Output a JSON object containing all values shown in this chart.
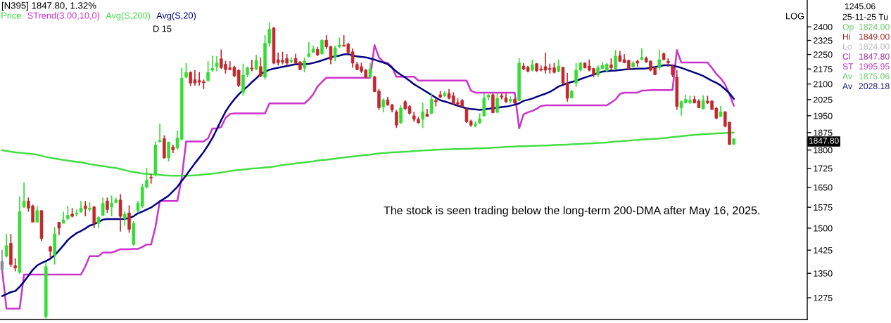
{
  "chart_data": [
    {
      "type": "candlestick",
      "title": "[N395] 1847.80, 1.32%",
      "categories": [
        null,
        null,
        null,
        null,
        null,
        null,
        null,
        null,
        null,
        null,
        null,
        null,
        null,
        null,
        null,
        null,
        null,
        null,
        null,
        null,
        null,
        null,
        null,
        null,
        null,
        null,
        null,
        null,
        null,
        null,
        null,
        null,
        null,
        null,
        null,
        null,
        null,
        null,
        null,
        null,
        null,
        null,
        null,
        null,
        null,
        null,
        null,
        null,
        null,
        null,
        null,
        null,
        null,
        null,
        null,
        null,
        null,
        null,
        null,
        null,
        null,
        null,
        null,
        null,
        null,
        null,
        null,
        null,
        null,
        null,
        null,
        null,
        null,
        null,
        null,
        null,
        null,
        null,
        null,
        null,
        null,
        null,
        null,
        null,
        null,
        null,
        null,
        null,
        null,
        null,
        null,
        null,
        null,
        null,
        null,
        null,
        null,
        null,
        null,
        null,
        null,
        null,
        null,
        null,
        null,
        null,
        null,
        null,
        null,
        null,
        null,
        null,
        null,
        null,
        null,
        null,
        null,
        null,
        null,
        null,
        null,
        null,
        null,
        null,
        null,
        null,
        null,
        null,
        null,
        null,
        null,
        null,
        null,
        null,
        null,
        null,
        null,
        null,
        null,
        null,
        null,
        null,
        null,
        null,
        null,
        null,
        null,
        null,
        null,
        null,
        null,
        null,
        null,
        null,
        null,
        null,
        null,
        null,
        null,
        null,
        null,
        null,
        null,
        null,
        null,
        null,
        null,
        null
      ],
      "series": [
        {
          "name": "Price",
          "color": "#33dd33",
          "ohlc": [
            [
              1388,
              1426,
              1356,
              1360
            ],
            [
              1405,
              1480,
              1401,
              1440
            ],
            [
              1448,
              1480,
              1371,
              1378
            ],
            [
              1374,
              1398,
              1356,
              1367
            ],
            [
              1353,
              1615,
              1349,
              1559
            ],
            [
              1576,
              1669,
              1572,
              1598
            ],
            [
              1598,
              1611,
              1559,
              1572
            ],
            [
              1580,
              1585,
              1521,
              1521
            ],
            [
              1521,
              1580,
              1521,
              1563
            ],
            [
              1563,
              1563,
              1456,
              1464
            ],
            [
              1220,
              1386,
              1215,
              1371
            ],
            [
              1436,
              1440,
              1401,
              1421
            ],
            [
              1409,
              1504,
              1378,
              1480
            ],
            [
              1521,
              1521,
              1476,
              1500
            ],
            [
              1517,
              1559,
              1517,
              1529
            ],
            [
              1534,
              1580,
              1529,
              1546
            ],
            [
              1550,
              1572,
              1538,
              1542
            ],
            [
              1550,
              1567,
              1542,
              1554
            ],
            [
              1559,
              1598,
              1554,
              1572
            ],
            [
              1580,
              1598,
              1542,
              1570
            ],
            [
              1567,
              1593,
              1559,
              1572
            ],
            [
              1576,
              1580,
              1500,
              1517
            ],
            [
              1517,
              1542,
              1500,
              1538
            ],
            [
              1546,
              1611,
              1542,
              1589
            ],
            [
              1598,
              1611,
              1554,
              1567
            ],
            [
              1576,
              1619,
              1542,
              1589
            ],
            [
              1593,
              1611,
              1589,
              1602
            ],
            [
              1602,
              1624,
              1488,
              1542
            ],
            [
              1534,
              1559,
              1508,
              1550
            ],
            [
              1554,
              1582,
              1484,
              1496
            ],
            [
              1444,
              1525,
              1440,
              1517
            ],
            [
              1563,
              1598,
              1554,
              1589
            ],
            [
              1580,
              1664,
              1572,
              1651
            ],
            [
              1651,
              1727,
              1646,
              1678
            ],
            [
              1690,
              1702,
              1664,
              1686
            ],
            [
              1702,
              1836,
              1692,
              1821
            ],
            [
              1836,
              1915,
              1831,
              1841
            ],
            [
              1849,
              1863,
              1764,
              1767
            ],
            [
              1767,
              1836,
              1753,
              1833
            ],
            [
              1813,
              1823,
              1787,
              1801
            ],
            [
              1809,
              1884,
              1801,
              1851
            ],
            [
              1846,
              2181,
              1841,
              2128
            ],
            [
              2134,
              2205,
              2128,
              2158
            ],
            [
              2158,
              2163,
              2090,
              2105
            ],
            [
              2122,
              2169,
              2093,
              2105
            ],
            [
              2117,
              2160,
              2093,
              2109
            ],
            [
              2112,
              2122,
              2075,
              2106
            ],
            [
              2117,
              2215,
              2111,
              2158
            ],
            [
              2169,
              2244,
              2160,
              2178
            ],
            [
              2187,
              2241,
              2163,
              2205
            ],
            [
              2227,
              2276,
              2175,
              2181
            ],
            [
              2199,
              2217,
              2152,
              2172
            ],
            [
              2181,
              2215,
              2169,
              2172
            ],
            [
              2184,
              2191,
              2134,
              2140
            ],
            [
              2169,
              2172,
              2085,
              2093
            ],
            [
              2060,
              2202,
              2043,
              2144
            ],
            [
              2146,
              2187,
              2134,
              2181
            ],
            [
              2180,
              2223,
              2163,
              2174
            ],
            [
              2174,
              2248,
              2169,
              2219
            ],
            [
              2187,
              2235,
              2134,
              2140
            ],
            [
              2134,
              2354,
              2122,
              2310
            ],
            [
              2310,
              2426,
              2291,
              2387
            ],
            [
              2393,
              2400,
              2199,
              2205
            ],
            [
              2223,
              2260,
              2193,
              2207
            ],
            [
              2219,
              2264,
              2199,
              2211
            ],
            [
              2229,
              2252,
              2193,
              2205
            ],
            [
              2214,
              2235,
              2205,
              2220
            ],
            [
              2229,
              2254,
              2199,
              2205
            ],
            [
              2211,
              2216,
              2169,
              2172
            ],
            [
              2181,
              2235,
              2158,
              2215
            ],
            [
              2239,
              2316,
              2235,
              2254
            ],
            [
              2260,
              2297,
              2260,
              2279
            ],
            [
              2276,
              2291,
              2241,
              2248
            ],
            [
              2254,
              2331,
              2248,
              2326
            ],
            [
              2326,
              2354,
              2279,
              2291
            ],
            [
              2291,
              2297,
              2199,
              2223
            ],
            [
              2235,
              2297,
              2215,
              2285
            ],
            [
              2291,
              2341,
              2285,
              2300
            ],
            [
              2299,
              2354,
              2291,
              2294
            ],
            [
              2305,
              2313,
              2252,
              2260
            ],
            [
              2264,
              2282,
              2181,
              2205
            ],
            [
              2198,
              2211,
              2169,
              2172
            ],
            [
              2187,
              2207,
              2155,
              2163
            ],
            [
              2169,
              2175,
              2128,
              2134
            ],
            [
              2134,
              2205,
              2131,
              2175
            ],
            [
              2136,
              2140,
              2060,
              2063
            ],
            [
              2065,
              2076,
              1977,
              1987
            ],
            [
              1990,
              2031,
              1966,
              2023
            ],
            [
              2023,
              2037,
              1996,
              2001
            ],
            [
              2001,
              2004,
              1966,
              1977
            ],
            [
              1968,
              1977,
              1895,
              1908
            ],
            [
              1918,
              1998,
              1913,
              1985
            ],
            [
              2015,
              2023,
              1977,
              1982
            ],
            [
              1993,
              1998,
              1956,
              1961
            ],
            [
              1950,
              1968,
              1923,
              1934
            ],
            [
              1934,
              1945,
              1915,
              1918
            ],
            [
              1934,
              2011,
              1895,
              1968
            ],
            [
              1958,
              1982,
              1945,
              1947
            ],
            [
              1961,
              2056,
              1956,
              2026
            ],
            [
              2021,
              2031,
              1993,
              2015
            ],
            [
              2048,
              2067,
              2031,
              2037
            ],
            [
              2043,
              2065,
              2037,
              2054
            ],
            [
              2054,
              2075,
              2026,
              2031
            ],
            [
              2043,
              2060,
              1998,
              2004
            ],
            [
              2011,
              2031,
              1996,
              2004
            ],
            [
              2021,
              2028,
              1987,
              1993
            ],
            [
              1982,
              1987,
              1918,
              1923
            ],
            [
              1925,
              1932,
              1901,
              1908
            ],
            [
              1905,
              1925,
              1898,
              1913
            ],
            [
              1918,
              1961,
              1913,
              1936
            ],
            [
              1950,
              2054,
              1945,
              2031
            ],
            [
              2037,
              2051,
              2021,
              2045
            ],
            [
              2048,
              2054,
              1961,
              1964
            ],
            [
              1966,
              2054,
              1961,
              2031
            ],
            [
              2043,
              2054,
              2026,
              2037
            ],
            [
              2033,
              2054,
              2009,
              2015
            ],
            [
              2018,
              2040,
              2009,
              2026
            ],
            [
              2026,
              2031,
              2004,
              2009
            ],
            [
              2021,
              2230,
              2018,
              2205
            ],
            [
              2190,
              2205,
              2169,
              2175
            ],
            [
              2184,
              2191,
              2158,
              2163
            ],
            [
              2169,
              2223,
              2163,
              2196
            ],
            [
              2202,
              2205,
              2160,
              2166
            ],
            [
              2175,
              2193,
              2163,
              2169
            ],
            [
              2187,
              2260,
              2152,
              2169
            ],
            [
              2178,
              2202,
              2152,
              2172
            ],
            [
              2181,
              2205,
              2152,
              2158
            ],
            [
              2163,
              2223,
              2158,
              2190
            ],
            [
              2184,
              2184,
              2099,
              2105
            ],
            [
              2105,
              2155,
              2015,
              2031
            ],
            [
              2033,
              2071,
              2031,
              2065
            ],
            [
              2105,
              2205,
              2085,
              2169
            ],
            [
              2169,
              2211,
              2163,
              2205
            ],
            [
              2205,
              2209,
              2178,
              2181
            ],
            [
              2190,
              2223,
              2163,
              2169
            ],
            [
              2177,
              2181,
              2134,
              2146
            ],
            [
              2146,
              2193,
              2134,
              2181
            ],
            [
              2178,
              2211,
              2175,
              2193
            ],
            [
              2166,
              2205,
              2160,
              2199
            ],
            [
              2196,
              2230,
              2169,
              2181
            ],
            [
              2175,
              2273,
              2173,
              2241
            ],
            [
              2244,
              2269,
              2211,
              2215
            ],
            [
              2223,
              2252,
              2205,
              2207
            ],
            [
              2219,
              2223,
              2169,
              2175
            ],
            [
              2187,
              2215,
              2181,
              2205
            ],
            [
              2215,
              2223,
              2187,
              2205
            ],
            [
              2223,
              2282,
              2219,
              2235
            ],
            [
              2230,
              2239,
              2207,
              2211
            ],
            [
              2215,
              2219,
              2163,
              2169
            ],
            [
              2181,
              2187,
              2144,
              2146
            ],
            [
              2181,
              2276,
              2169,
              2223
            ],
            [
              2254,
              2260,
              2219,
              2223
            ],
            [
              2215,
              2230,
              2187,
              2207
            ],
            [
              2187,
              2199,
              2134,
              2146
            ],
            [
              2134,
              2169,
              1977,
              1993
            ],
            [
              1987,
              2021,
              1950,
              2015
            ],
            [
              2009,
              2048,
              2008,
              2026
            ],
            [
              2011,
              2043,
              2004,
              2021
            ],
            [
              2026,
              2043,
              2008,
              2009
            ],
            [
              2018,
              2026,
              1985,
              1987
            ],
            [
              1982,
              2045,
              1979,
              2021
            ],
            [
              2018,
              2043,
              2004,
              2009
            ],
            [
              2018,
              2023,
              1977,
              1979
            ],
            [
              1985,
              1990,
              1934,
              1939
            ],
            [
              1947,
              1996,
              1945,
              1968
            ],
            [
              1968,
              1971,
              1898,
              1903
            ],
            [
              1921,
              1923,
              1821,
              1824
            ],
            [
              1824,
              1849,
              1824,
              1847.8
            ]
          ],
          "colors": [
            "#8e8a9e",
            "#33dd33",
            "#c1272d",
            "#c1272d",
            "#33dd33",
            "#33dd33",
            "#c1272d",
            "#c1272d",
            "#33dd33",
            "#c1272d",
            "#33dd33",
            "#c1272d",
            "#33dd33",
            "#c1272d",
            "#33dd33",
            "#33dd33",
            "#c1272d",
            "#33dd33",
            "#33dd33",
            "#c1272d",
            "#33dd33",
            "#c1272d",
            "#33dd33",
            "#33dd33",
            "#c1272d",
            "#33dd33",
            "#33dd33",
            "#c1272d",
            "#33dd33",
            "#c1272d",
            "#33dd33",
            "#33dd33",
            "#33dd33",
            "#33dd33",
            "#c1272d",
            "#33dd33",
            "#33dd33",
            "#c1272d",
            "#33dd33",
            "#c1272d",
            "#33dd33",
            "#33dd33",
            "#33dd33",
            "#c1272d",
            "#c1272d",
            "#c1272d",
            "#c1272d",
            "#33dd33",
            "#33dd33",
            "#33dd33",
            "#c1272d",
            "#c1272d",
            "#c1272d",
            "#c1272d",
            "#c1272d",
            "#33dd33",
            "#33dd33",
            "#c1272d",
            "#33dd33",
            "#c1272d",
            "#33dd33",
            "#33dd33",
            "#c1272d",
            "#c1272d",
            "#c1272d",
            "#c1272d",
            "#33dd33",
            "#c1272d",
            "#c1272d",
            "#33dd33",
            "#33dd33",
            "#33dd33",
            "#c1272d",
            "#33dd33",
            "#c1272d",
            "#c1272d",
            "#33dd33",
            "#33dd33",
            "#c1272d",
            "#c1272d",
            "#c1272d",
            "#c1272d",
            "#c1272d",
            "#c1272d",
            "#33dd33",
            "#c1272d",
            "#c1272d",
            "#33dd33",
            "#c1272d",
            "#c1272d",
            "#c1272d",
            "#33dd33",
            "#c1272d",
            "#c1272d",
            "#c1272d",
            "#c1272d",
            "#33dd33",
            "#c1272d",
            "#33dd33",
            "#c1272d",
            "#c1272d",
            "#33dd33",
            "#c1272d",
            "#c1272d",
            "#c1272d",
            "#c1272d",
            "#c1272d",
            "#c1272d",
            "#33dd33",
            "#33dd33",
            "#33dd33",
            "#33dd33",
            "#c1272d",
            "#33dd33",
            "#c1272d",
            "#c1272d",
            "#33dd33",
            "#c1272d",
            "#33dd33",
            "#c1272d",
            "#c1272d",
            "#33dd33",
            "#c1272d",
            "#c1272d",
            "#c1272d",
            "#c1272d",
            "#c1272d",
            "#33dd33",
            "#c1272d",
            "#c1272d",
            "#33dd33",
            "#33dd33",
            "#33dd33",
            "#c1272d",
            "#c1272d",
            "#c1272d",
            "#33dd33",
            "#33dd33",
            "#33dd33",
            "#c1272d",
            "#33dd33",
            "#c1272d",
            "#c1272d",
            "#c1272d",
            "#33dd33",
            "#c1272d",
            "#33dd33",
            "#c1272d",
            "#c1272d",
            "#c1272d",
            "#33dd33",
            "#c1272d",
            "#c1272d",
            "#c1272d",
            "#c1272d",
            "#33dd33",
            "#33dd33",
            "#33dd33",
            "#c1272d",
            "#c1272d",
            "#33dd33",
            "#c1272d",
            "#c1272d",
            "#c1272d",
            "#33dd33",
            "#c1272d",
            "#c1272d",
            "#33dd33"
          ]
        },
        {
          "name": "STrend(3.00,10,0)",
          "type": "line",
          "color": "#cc33cc",
          "values": [
            1362,
            1243,
            1243,
            1243,
            1243,
            1346,
            1346,
            1346,
            1346,
            1346,
            1346,
            1346,
            1346,
            1346,
            1346,
            1346,
            1346,
            1346,
            1346,
            1372,
            1405,
            1405,
            1405,
            1417,
            1417,
            1417,
            1422,
            1428,
            1428,
            1428,
            1429,
            1429,
            1436,
            1444,
            1444,
            1504,
            1598,
            1598,
            1598,
            1598,
            1598,
            1687,
            1836,
            1836,
            1836,
            1836,
            1836,
            1850,
            1893,
            1893,
            1900,
            1940,
            1958,
            1961,
            1961,
            1961,
            1961,
            1961,
            1961,
            1961,
            1961,
            2007,
            2007,
            2007,
            2007,
            2007,
            2007,
            2007,
            2007,
            2007,
            2025,
            2050,
            2088,
            2110,
            2131,
            2131,
            2131,
            2131,
            2131,
            2131,
            2131,
            2131,
            2131,
            2131,
            2131,
            2300,
            2235,
            2211,
            2205,
            2185,
            2136,
            2136,
            2136,
            2136,
            2136,
            2117,
            2117,
            2117,
            2117,
            2117,
            2117,
            2117,
            2117,
            2117,
            2117,
            2117,
            2117,
            2068,
            2058,
            2058,
            2058,
            2058,
            2058,
            2058,
            2058,
            2058,
            2058,
            2058,
            1893,
            1956,
            1966,
            1972,
            1982,
            1995,
            1998,
            1998,
            1998,
            1998,
            1998,
            1998,
            1998,
            1998,
            1998,
            1998,
            1998,
            1998,
            1998,
            1998,
            1998,
            2011,
            2025,
            2052,
            2058,
            2058,
            2058,
            2058,
            2068,
            2069,
            2071,
            2071,
            2071,
            2071,
            2071,
            2071,
            2273,
            2208,
            2208,
            2208,
            2208,
            2208,
            2208,
            2208,
            2180,
            2150,
            2128,
            2098,
            2050,
            1995.95
          ]
        },
        {
          "name": "Avg(S,200)",
          "type": "line",
          "color": "#44dd44",
          "values": [
            1799,
            1796,
            1793,
            1790,
            1789,
            1787,
            1785,
            1783,
            1781,
            1776,
            1771,
            1768,
            1765,
            1762,
            1759,
            1756,
            1754,
            1751,
            1749,
            1746,
            1742,
            1739,
            1736,
            1734,
            1731,
            1728,
            1726,
            1722,
            1718,
            1713,
            1710,
            1707,
            1704,
            1703,
            1701,
            1700,
            1699,
            1697,
            1696,
            1695,
            1695,
            1695,
            1695,
            1696,
            1697,
            1698,
            1700,
            1702,
            1704,
            1705,
            1708,
            1711,
            1714,
            1716,
            1718,
            1720,
            1722,
            1724,
            1725,
            1726,
            1728,
            1730,
            1732,
            1735,
            1738,
            1740,
            1742,
            1745,
            1747,
            1749,
            1751,
            1753,
            1756,
            1758,
            1760,
            1762,
            1764,
            1767,
            1769,
            1771,
            1773,
            1775,
            1777,
            1779,
            1781,
            1784,
            1786,
            1787,
            1789,
            1790,
            1791,
            1792,
            1793,
            1794,
            1796,
            1797,
            1798,
            1799,
            1800,
            1801,
            1802,
            1803,
            1803,
            1804,
            1804,
            1805,
            1805,
            1806,
            1807,
            1807,
            1808,
            1809,
            1810,
            1811,
            1812,
            1813,
            1814,
            1815,
            1816,
            1816,
            1817,
            1818,
            1818,
            1819,
            1819,
            1820,
            1821,
            1822,
            1822,
            1823,
            1824,
            1825,
            1826,
            1827,
            1828,
            1829,
            1830,
            1831,
            1832,
            1834,
            1836,
            1837,
            1839,
            1840,
            1842,
            1843,
            1845,
            1846,
            1847,
            1848,
            1849,
            1851,
            1853,
            1855,
            1857,
            1859,
            1861,
            1863,
            1865,
            1866,
            1868,
            1869,
            1870,
            1871,
            1872,
            1873,
            1874,
            1875.06
          ]
        },
        {
          "name": "Avg(S,20)",
          "type": "line",
          "color": "#000080",
          "values": [
            1280,
            1286,
            1292,
            1295,
            1308,
            1324,
            1342,
            1361,
            1375,
            1383,
            1389,
            1397,
            1408,
            1424,
            1441,
            1459,
            1472,
            1483,
            1490,
            1499,
            1509,
            1514,
            1522,
            1530,
            1532,
            1532,
            1532,
            1532,
            1533,
            1536,
            1542,
            1553,
            1559,
            1567,
            1574,
            1585,
            1597,
            1607,
            1618,
            1635,
            1652,
            1675,
            1697,
            1721,
            1745,
            1768,
            1792,
            1820,
            1851,
            1890,
            1930,
            1969,
            2000,
            2026,
            2050,
            2070,
            2088,
            2109,
            2128,
            2150,
            2161,
            2171,
            2177,
            2181,
            2186,
            2190,
            2195,
            2199,
            2199,
            2199,
            2201,
            2206,
            2212,
            2219,
            2227,
            2235,
            2240,
            2244,
            2250,
            2252,
            2244,
            2240,
            2237,
            2235,
            2229,
            2223,
            2215,
            2208,
            2200,
            2181,
            2162,
            2146,
            2132,
            2116,
            2099,
            2086,
            2073,
            2060,
            2047,
            2034,
            2022,
            2016,
            2010,
            2003,
            1996,
            1990,
            1984,
            1981,
            1979,
            1977,
            1979,
            1982,
            1985,
            1987,
            1990,
            1992,
            1996,
            2001,
            2007,
            2019,
            2024,
            2030,
            2038,
            2046,
            2053,
            2062,
            2074,
            2088,
            2096,
            2104,
            2110,
            2116,
            2124,
            2132,
            2139,
            2146,
            2154,
            2162,
            2164,
            2166,
            2167,
            2170,
            2172,
            2174,
            2175,
            2177,
            2177,
            2178,
            2181,
            2185,
            2189,
            2194,
            2195,
            2193,
            2187,
            2181,
            2173,
            2165,
            2157,
            2149,
            2140,
            2128,
            2116,
            2106,
            2093,
            2075,
            2055,
            2028.18
          ]
        }
      ],
      "log": "y",
      "ylim": [
        1212,
        2555
      ],
      "yticks": [
        1275,
        1350,
        1425,
        1500,
        1575,
        1650,
        1725,
        1800,
        1875,
        1950,
        2025,
        2100,
        2175,
        2250,
        2325,
        2400
      ],
      "tick_labels": "y",
      "legend": "top left",
      "annotations": [
        "D 15",
        "LOG",
        "The stock is seen trading below the long-term 200-DMA after May 16, 2025.",
        "1847.80"
      ]
    },
    {
      "type": "other",
      "title": "1245.06",
      "subtitle": "25-11-25 Tu",
      "categories": [
        "Op",
        "Hi",
        "Lo",
        "Cl",
        "ST",
        "Av",
        "Av"
      ],
      "value_labels": [
        "1824.00",
        "1849.00",
        "1824.00",
        "1847.80",
        "1995.95",
        "1875.06",
        "2028.18"
      ],
      "colors": [
        "#66cc66",
        "#a0282a",
        "#b8b8b8",
        "#a030a0",
        "#c040c0",
        "#66cc66",
        "#1c1c80"
      ]
    }
  ]
}
